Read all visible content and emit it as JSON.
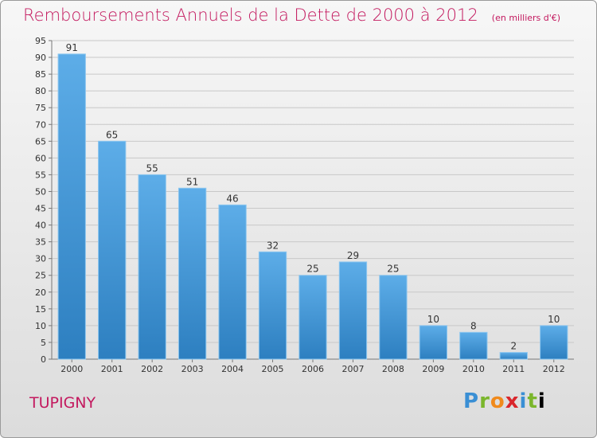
{
  "header": {
    "title": "Remboursements Annuels de la Dette de 2000 à 2012",
    "unit": "(en milliers d'€)"
  },
  "footer": {
    "commune": "TUPIGNY",
    "logo_letters": [
      "P",
      "r",
      "o",
      "x",
      "i",
      "t",
      "i"
    ]
  },
  "colors": {
    "bar_top": "#5dade8",
    "bar_bottom": "#2d7fc0",
    "title": "#c3185e",
    "grid": "#c8c8c8"
  },
  "chart_data": {
    "type": "bar",
    "categories": [
      "2000",
      "2001",
      "2002",
      "2003",
      "2004",
      "2005",
      "2006",
      "2007",
      "2008",
      "2009",
      "2010",
      "2011",
      "2012"
    ],
    "values": [
      91,
      65,
      55,
      51,
      46,
      32,
      25,
      29,
      25,
      10,
      8,
      2,
      10
    ],
    "ylim": [
      0,
      95
    ],
    "ytick_step": 5,
    "grid": true,
    "legend": "none",
    "data_labels": true
  }
}
